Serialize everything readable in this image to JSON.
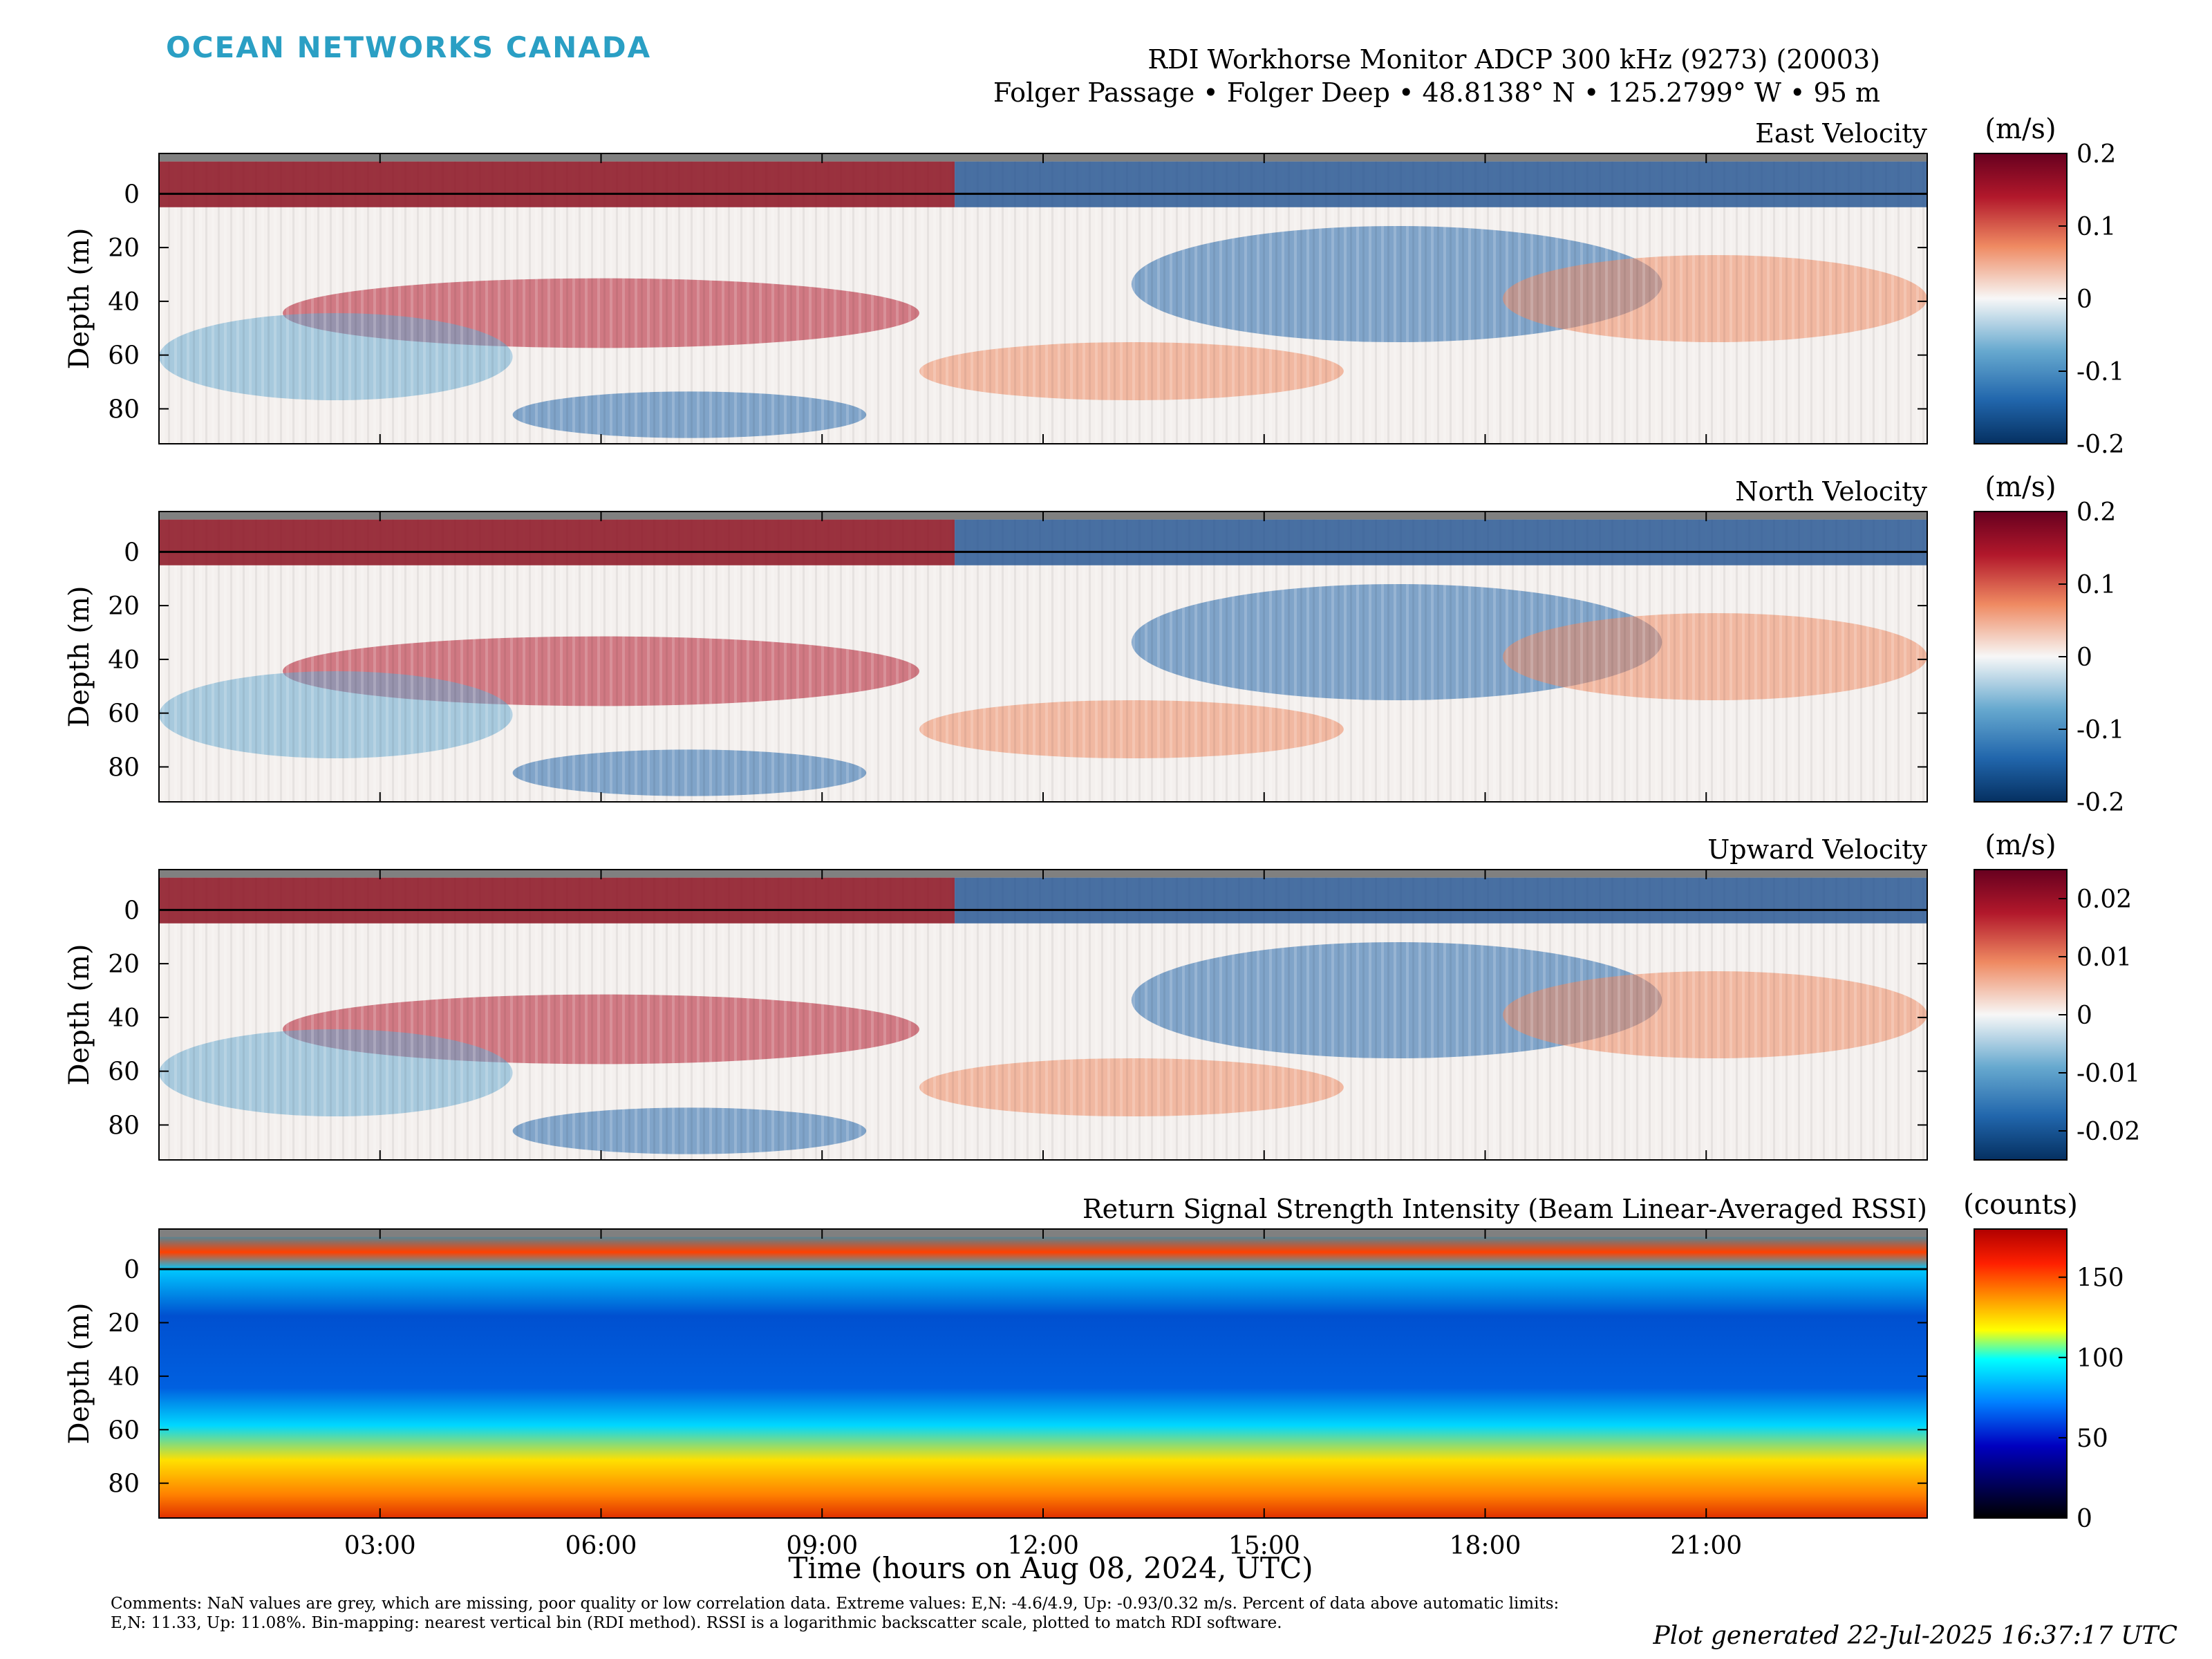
{
  "header": {
    "logo_text": "OCEAN NETWORKS CANADA",
    "title_line1": "RDI Workhorse Monitor ADCP 300 kHz (9273) (20003)",
    "title_line2": "Folger Passage • Folger Deep • 48.8138° N • 125.2799° W • 95 m"
  },
  "footer": {
    "xlabel": "Time (hours on Aug 08, 2024, UTC)",
    "comments": "Comments: NaN values are grey, which are missing, poor quality or low correlation data. Extreme values: E,N: -4.6/4.9, Up: -0.93/0.32 m/s. Percent of data above automatic limits: E,N: 11.33, Up: 11.08%. Bin-mapping: nearest vertical bin (RDI method). RSSI is a logarithmic backscatter scale, plotted to match RDI software.",
    "generated": "Plot generated 22-Jul-2025 16:37:17 UTC"
  },
  "colors": {
    "logo": "#2a9fc4",
    "nan_grey": "#808080",
    "surface_line": "#000000"
  },
  "chart_data": [
    {
      "type": "heatmap",
      "title": "East Velocity",
      "ylabel": "Depth (m)",
      "colorbar_label": "(m/s)",
      "colormap": "red-blue diverging",
      "ylim": [
        -15,
        93
      ],
      "clim": [
        -0.2,
        0.2
      ],
      "yticks": [
        "0",
        "20",
        "40",
        "60",
        "80"
      ],
      "ytick_values": [
        0,
        20,
        40,
        60,
        80
      ],
      "cticks": [
        "0.2",
        "0.1",
        "0",
        "-0.1",
        "-0.2"
      ],
      "ctick_values": [
        0.2,
        0.1,
        0,
        -0.1,
        -0.2
      ]
    },
    {
      "type": "heatmap",
      "title": "North Velocity",
      "ylabel": "Depth (m)",
      "colorbar_label": "(m/s)",
      "colormap": "red-blue diverging",
      "ylim": [
        -15,
        93
      ],
      "clim": [
        -0.2,
        0.2
      ],
      "yticks": [
        "0",
        "20",
        "40",
        "60",
        "80"
      ],
      "ytick_values": [
        0,
        20,
        40,
        60,
        80
      ],
      "cticks": [
        "0.2",
        "0.1",
        "0",
        "-0.1",
        "-0.2"
      ],
      "ctick_values": [
        0.2,
        0.1,
        0,
        -0.1,
        -0.2
      ]
    },
    {
      "type": "heatmap",
      "title": "Upward Velocity",
      "ylabel": "Depth (m)",
      "colorbar_label": "(m/s)",
      "colormap": "red-blue diverging",
      "ylim": [
        -15,
        93
      ],
      "clim": [
        -0.025,
        0.025
      ],
      "yticks": [
        "0",
        "20",
        "40",
        "60",
        "80"
      ],
      "ytick_values": [
        0,
        20,
        40,
        60,
        80
      ],
      "cticks": [
        "0.02",
        "0.01",
        "0",
        "-0.01",
        "-0.02"
      ],
      "ctick_values": [
        0.02,
        0.01,
        0,
        -0.01,
        -0.02
      ]
    },
    {
      "type": "heatmap",
      "title": "Return Signal Strength Intensity (Beam Linear-Averaged RSSI)",
      "ylabel": "Depth (m)",
      "colorbar_label": "(counts)",
      "colormap": "jet",
      "ylim": [
        -15,
        93
      ],
      "clim": [
        0,
        180
      ],
      "yticks": [
        "0",
        "20",
        "40",
        "60",
        "80"
      ],
      "ytick_values": [
        0,
        20,
        40,
        60,
        80
      ],
      "cticks": [
        "150",
        "100",
        "50",
        "0"
      ],
      "ctick_values": [
        150,
        100,
        50,
        0
      ]
    }
  ],
  "x_axis": {
    "xlim": [
      0,
      24
    ],
    "xticks": [
      "03:00",
      "06:00",
      "09:00",
      "12:00",
      "15:00",
      "18:00",
      "21:00"
    ],
    "xtick_values": [
      3,
      6,
      9,
      12,
      15,
      18,
      21
    ]
  }
}
